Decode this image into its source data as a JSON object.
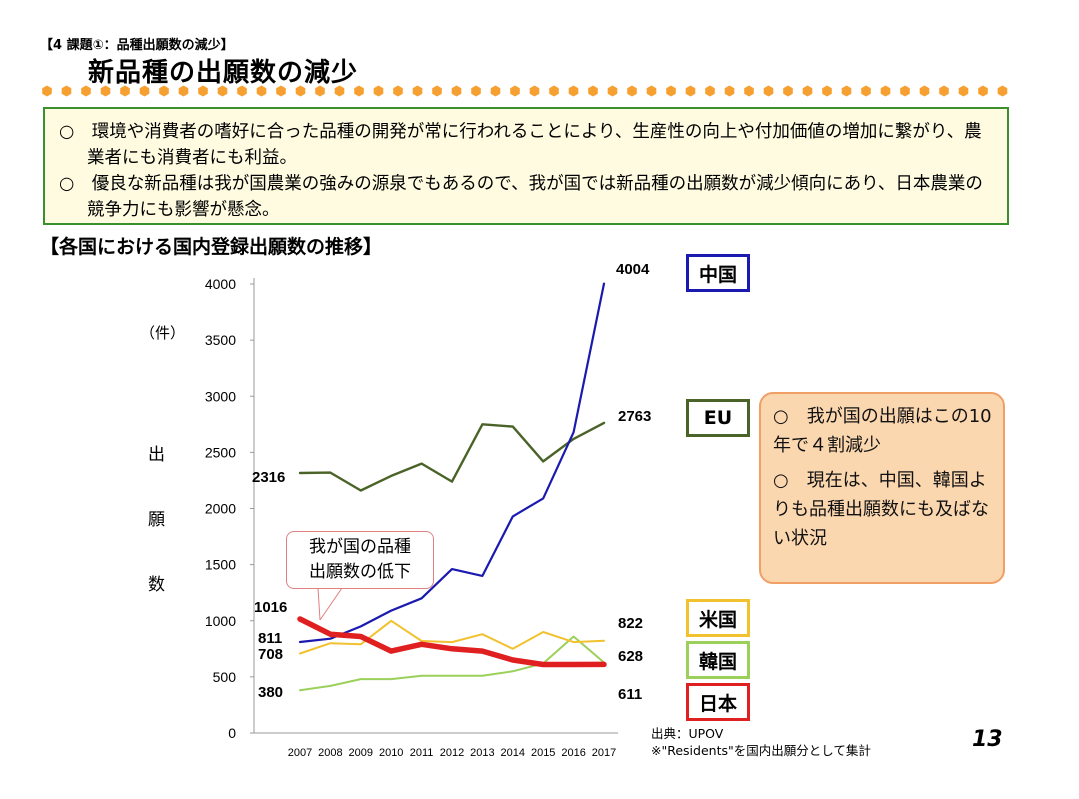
{
  "header": {
    "section_label": "【4 課題①：品種出願数の減少】",
    "title": "新品種の出願数の減少"
  },
  "summary": {
    "bullet1": "○　環境や消費者の嗜好に合った品種の開発が常に行われることにより、生産性の向上や付加価値の増加に繋がり、農業者にも消費者にも利益。",
    "bullet2": "○　優良な新品種は我が国農業の強みの源泉でもあるので、我が国では新品種の出願数が減少傾向にあり、日本農業の競争力にも影響が懸念。"
  },
  "chart_heading": "【各国における国内登録出願数の推移】",
  "y_unit": "（件）",
  "y_title_chars": [
    "出",
    "願",
    "数"
  ],
  "callout": {
    "line1": "我が国の品種",
    "line2": "出願数の低下"
  },
  "note": {
    "point1": "○　我が国の出願はこの10年で４割減少",
    "point2": "○　現在は、中国、韓国よりも品種出願数にも及ばない状況"
  },
  "source": {
    "line1": "出典：UPOV",
    "line2": "※\"Residents\"を国内出願分として集計"
  },
  "page_number": "13",
  "colors": {
    "china": "#1a1ab0",
    "eu": "#4a6328",
    "usa": "#f2c12e",
    "korea": "#9bd05a",
    "japan": "#e02020",
    "accent_green": "#3c8f2e",
    "dot": "#f6a032"
  },
  "chart_data": {
    "type": "line",
    "x": [
      2007,
      2008,
      2009,
      2010,
      2011,
      2012,
      2013,
      2014,
      2015,
      2016,
      2017
    ],
    "ylim": [
      0,
      4000
    ],
    "yticks": [
      0,
      500,
      1000,
      1500,
      2000,
      2500,
      3000,
      3500,
      4000
    ],
    "ylabel": "出願数",
    "grid": false,
    "series": [
      {
        "key": "china",
        "name": "中国",
        "values": [
          811,
          840,
          950,
          1090,
          1200,
          1460,
          1400,
          1930,
          2090,
          2680,
          4004
        ]
      },
      {
        "key": "eu",
        "name": "EU",
        "values": [
          2316,
          2320,
          2160,
          2290,
          2400,
          2240,
          2750,
          2730,
          2420,
          2620,
          2763
        ]
      },
      {
        "key": "usa",
        "name": "米国",
        "values": [
          708,
          800,
          790,
          1000,
          820,
          810,
          880,
          750,
          900,
          810,
          822
        ]
      },
      {
        "key": "korea",
        "name": "韓国",
        "values": [
          380,
          420,
          480,
          480,
          510,
          510,
          510,
          550,
          620,
          860,
          628
        ]
      },
      {
        "key": "japan",
        "name": "日本",
        "values": [
          1016,
          880,
          860,
          730,
          790,
          750,
          730,
          650,
          610,
          610,
          611
        ]
      }
    ],
    "value_labels": [
      {
        "series": "china",
        "text": "811"
      },
      {
        "series": "china",
        "text": "4004"
      },
      {
        "series": "eu",
        "text": "2316"
      },
      {
        "series": "eu",
        "text": "2763"
      },
      {
        "series": "usa",
        "text": "708"
      },
      {
        "series": "usa",
        "text": "822"
      },
      {
        "series": "korea",
        "text": "380"
      },
      {
        "series": "korea",
        "text": "628"
      },
      {
        "series": "japan",
        "text": "1016"
      },
      {
        "series": "japan",
        "text": "611"
      }
    ]
  }
}
